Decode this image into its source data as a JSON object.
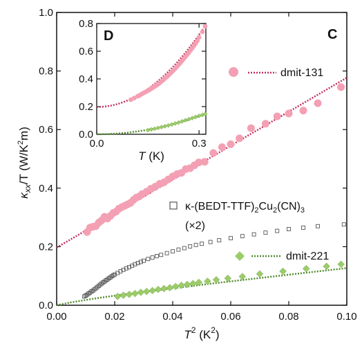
{
  "chart_data": [
    {
      "panel": "C",
      "type": "scatter",
      "xlabel": {
        "base": "T",
        "sup": "2",
        "unit_open": " (K",
        "unit_sup": "2",
        "unit_close": ")"
      },
      "ylabel": {
        "kappa": "κ",
        "sub": "xx",
        "slash_t": "/T (W/K",
        "sup": "2",
        "close": "m)"
      },
      "xlim": [
        0,
        0.1
      ],
      "ylim": [
        0,
        1.0
      ],
      "xticks": [
        "0.00",
        "0.02",
        "0.04",
        "0.06",
        "0.08",
        "0.10"
      ],
      "yticks": [
        "0.0",
        "0.2",
        "0.4",
        "0.6",
        "0.8",
        "1.0"
      ],
      "series": [
        {
          "name": "dmit-131",
          "marker": "circle",
          "color": "#f4a0b4",
          "fit_color": "#c0305c",
          "fit": {
            "intercept": 0.197,
            "slope": 5.8
          },
          "points": [
            [
              0.0105,
              0.25
            ],
            [
              0.0115,
              0.265
            ],
            [
              0.0125,
              0.268
            ],
            [
              0.0135,
              0.27
            ],
            [
              0.0145,
              0.282
            ],
            [
              0.0155,
              0.29
            ],
            [
              0.0165,
              0.302
            ],
            [
              0.0175,
              0.296
            ],
            [
              0.0185,
              0.305
            ],
            [
              0.0195,
              0.315
            ],
            [
              0.0205,
              0.32
            ],
            [
              0.0215,
              0.33
            ],
            [
              0.0225,
              0.335
            ],
            [
              0.0235,
              0.34
            ],
            [
              0.0245,
              0.345
            ],
            [
              0.0255,
              0.35
            ],
            [
              0.0265,
              0.36
            ],
            [
              0.0275,
              0.368
            ],
            [
              0.0285,
              0.372
            ],
            [
              0.0295,
              0.38
            ],
            [
              0.031,
              0.388
            ],
            [
              0.0325,
              0.398
            ],
            [
              0.034,
              0.405
            ],
            [
              0.0355,
              0.415
            ],
            [
              0.037,
              0.42
            ],
            [
              0.0385,
              0.43
            ],
            [
              0.04,
              0.44
            ],
            [
              0.0415,
              0.448
            ],
            [
              0.043,
              0.452
            ],
            [
              0.0445,
              0.465
            ],
            [
              0.046,
              0.468
            ],
            [
              0.0475,
              0.478
            ],
            [
              0.049,
              0.488
            ],
            [
              0.051,
              0.49
            ],
            [
              0.054,
              0.52
            ],
            [
              0.057,
              0.54
            ],
            [
              0.06,
              0.55
            ],
            [
              0.063,
              0.57
            ],
            [
              0.067,
              0.605
            ],
            [
              0.072,
              0.62
            ],
            [
              0.076,
              0.645
            ],
            [
              0.08,
              0.655
            ],
            [
              0.085,
              0.665
            ],
            [
              0.09,
              0.69
            ],
            [
              0.098,
              0.745
            ]
          ]
        },
        {
          "name": "κ-(BEDT-TTF)2Cu2(CN)3 (×2)",
          "label_parts": {
            "a": "κ-(BEDT-TTF)",
            "s1": "2",
            "b": "Cu",
            "s2": "2",
            "c": "(CN)",
            "s3": "3",
            "line2": "(×2)"
          },
          "marker": "square",
          "color": "#555555",
          "points": [
            [
              0.0095,
              0.03
            ],
            [
              0.01,
              0.033
            ],
            [
              0.0105,
              0.036
            ],
            [
              0.011,
              0.04
            ],
            [
              0.0115,
              0.043
            ],
            [
              0.012,
              0.047
            ],
            [
              0.0125,
              0.05
            ],
            [
              0.013,
              0.054
            ],
            [
              0.0135,
              0.058
            ],
            [
              0.014,
              0.062
            ],
            [
              0.0145,
              0.066
            ],
            [
              0.015,
              0.07
            ],
            [
              0.0155,
              0.074
            ],
            [
              0.016,
              0.078
            ],
            [
              0.0165,
              0.081
            ],
            [
              0.017,
              0.085
            ],
            [
              0.0175,
              0.088
            ],
            [
              0.018,
              0.092
            ],
            [
              0.0185,
              0.095
            ],
            [
              0.019,
              0.099
            ],
            [
              0.0195,
              0.102
            ],
            [
              0.02,
              0.105
            ],
            [
              0.021,
              0.11
            ],
            [
              0.022,
              0.116
            ],
            [
              0.023,
              0.121
            ],
            [
              0.024,
              0.126
            ],
            [
              0.025,
              0.13
            ],
            [
              0.026,
              0.135
            ],
            [
              0.027,
              0.14
            ],
            [
              0.028,
              0.144
            ],
            [
              0.029,
              0.148
            ],
            [
              0.03,
              0.152
            ],
            [
              0.0315,
              0.158
            ],
            [
              0.033,
              0.163
            ],
            [
              0.0345,
              0.168
            ],
            [
              0.036,
              0.172
            ],
            [
              0.038,
              0.178
            ],
            [
              0.04,
              0.184
            ],
            [
              0.042,
              0.19
            ],
            [
              0.044,
              0.195
            ],
            [
              0.046,
              0.201
            ],
            [
              0.048,
              0.206
            ],
            [
              0.05,
              0.21
            ],
            [
              0.053,
              0.216
            ],
            [
              0.056,
              0.222
            ],
            [
              0.06,
              0.229
            ],
            [
              0.064,
              0.236
            ],
            [
              0.068,
              0.242
            ],
            [
              0.072,
              0.248
            ],
            [
              0.076,
              0.254
            ],
            [
              0.08,
              0.26
            ],
            [
              0.085,
              0.265
            ],
            [
              0.09,
              0.27
            ],
            [
              0.099,
              0.276
            ]
          ]
        },
        {
          "name": "dmit-221",
          "marker": "diamond",
          "color": "#9ccc6a",
          "fit_color": "#4f8a2a",
          "points": [
            [
              0.021,
              0.03
            ],
            [
              0.023,
              0.034
            ],
            [
              0.025,
              0.037
            ],
            [
              0.027,
              0.04
            ],
            [
              0.029,
              0.044
            ],
            [
              0.031,
              0.047
            ],
            [
              0.033,
              0.05
            ],
            [
              0.035,
              0.054
            ],
            [
              0.037,
              0.057
            ],
            [
              0.039,
              0.06
            ],
            [
              0.041,
              0.064
            ],
            [
              0.043,
              0.068
            ],
            [
              0.045,
              0.071
            ],
            [
              0.047,
              0.074
            ],
            [
              0.049,
              0.078
            ],
            [
              0.052,
              0.082
            ],
            [
              0.055,
              0.087
            ],
            [
              0.059,
              0.092
            ],
            [
              0.064,
              0.098
            ],
            [
              0.07,
              0.107
            ],
            [
              0.078,
              0.116
            ],
            [
              0.086,
              0.125
            ],
            [
              0.093,
              0.133
            ],
            [
              0.098,
              0.14
            ]
          ]
        }
      ]
    },
    {
      "panel": "D",
      "type": "scatter",
      "xlabel": {
        "base": "T",
        "unit": " (K)"
      },
      "xlim": [
        0,
        0.32
      ],
      "ylim": [
        0,
        0.8
      ],
      "xticks": [
        "0.0",
        "0.3"
      ],
      "yticks": [
        "0.0",
        "0.2",
        "0.4",
        "0.6",
        "0.8"
      ],
      "series": [
        {
          "name": "dmit-131",
          "marker": "circle",
          "color": "#f4a0b4",
          "fit_color": "#c0305c",
          "points": [
            [
              0.1,
              0.25
            ],
            [
              0.11,
              0.262
            ],
            [
              0.12,
              0.275
            ],
            [
              0.125,
              0.28
            ],
            [
              0.13,
              0.288
            ],
            [
              0.135,
              0.295
            ],
            [
              0.14,
              0.302
            ],
            [
              0.145,
              0.308
            ],
            [
              0.15,
              0.316
            ],
            [
              0.155,
              0.322
            ],
            [
              0.16,
              0.33
            ],
            [
              0.165,
              0.338
            ],
            [
              0.17,
              0.345
            ],
            [
              0.175,
              0.354
            ],
            [
              0.18,
              0.362
            ],
            [
              0.185,
              0.372
            ],
            [
              0.19,
              0.382
            ],
            [
              0.195,
              0.392
            ],
            [
              0.2,
              0.404
            ],
            [
              0.205,
              0.414
            ],
            [
              0.21,
              0.426
            ],
            [
              0.215,
              0.438
            ],
            [
              0.22,
              0.45
            ],
            [
              0.225,
              0.462
            ],
            [
              0.23,
              0.475
            ],
            [
              0.235,
              0.488
            ],
            [
              0.24,
              0.502
            ],
            [
              0.245,
              0.516
            ],
            [
              0.25,
              0.53
            ],
            [
              0.255,
              0.545
            ],
            [
              0.26,
              0.56
            ],
            [
              0.265,
              0.575
            ],
            [
              0.27,
              0.59
            ],
            [
              0.275,
              0.607
            ],
            [
              0.28,
              0.622
            ],
            [
              0.285,
              0.64
            ],
            [
              0.29,
              0.657
            ],
            [
              0.295,
              0.675
            ],
            [
              0.3,
              0.7
            ],
            [
              0.31,
              0.74
            ],
            [
              0.318,
              0.78
            ]
          ]
        },
        {
          "name": "dmit-221",
          "marker": "diamond",
          "color": "#9ccc6a",
          "fit_color": "#4f8a2a",
          "points": [
            [
              0.15,
              0.03
            ],
            [
              0.16,
              0.035
            ],
            [
              0.17,
              0.04
            ],
            [
              0.18,
              0.046
            ],
            [
              0.19,
              0.052
            ],
            [
              0.2,
              0.058
            ],
            [
              0.21,
              0.064
            ],
            [
              0.22,
              0.071
            ],
            [
              0.23,
              0.078
            ],
            [
              0.24,
              0.085
            ],
            [
              0.25,
              0.093
            ],
            [
              0.26,
              0.101
            ],
            [
              0.27,
              0.109
            ],
            [
              0.28,
              0.117
            ],
            [
              0.29,
              0.125
            ],
            [
              0.3,
              0.133
            ],
            [
              0.31,
              0.14
            ],
            [
              0.318,
              0.146
            ]
          ]
        }
      ]
    }
  ]
}
